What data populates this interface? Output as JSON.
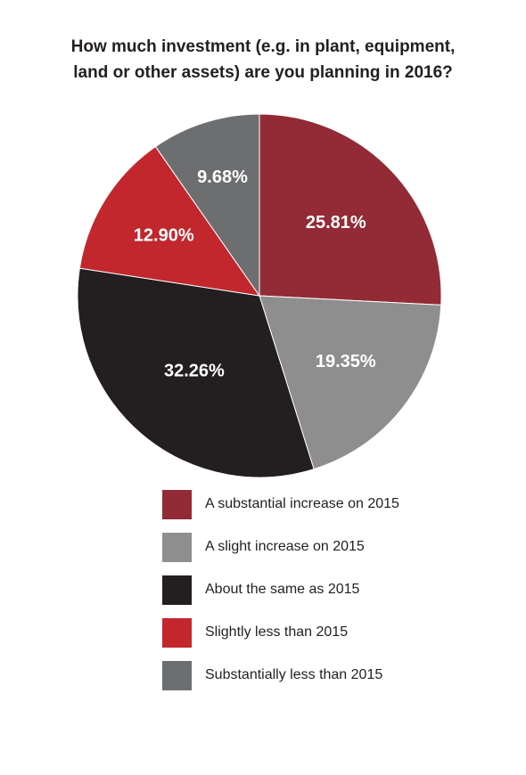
{
  "chart_data": {
    "type": "pie",
    "title_lines": [
      "How much investment (e.g. in plant, equipment,",
      "land or other assets) are you planning in 2016?"
    ],
    "slices": [
      {
        "label": "A substantial increase on 2015",
        "value": 25.81,
        "value_text": "25.81%",
        "color": "#922b35"
      },
      {
        "label": "A slight increase on 2015",
        "value": 19.35,
        "value_text": "19.35%",
        "color": "#8e8e8e"
      },
      {
        "label": "About the same as 2015",
        "value": 32.26,
        "value_text": "32.26%",
        "color": "#231f20"
      },
      {
        "label": "Slightly less than 2015",
        "value": 12.9,
        "value_text": "12.90%",
        "color": "#c1272d"
      },
      {
        "label": "Substantially less than 2015",
        "value": 9.68,
        "value_text": "9.68%",
        "color": "#6d6e70"
      }
    ],
    "start": "12 o'clock",
    "direction": "clockwise",
    "legend_position": "bottom"
  }
}
